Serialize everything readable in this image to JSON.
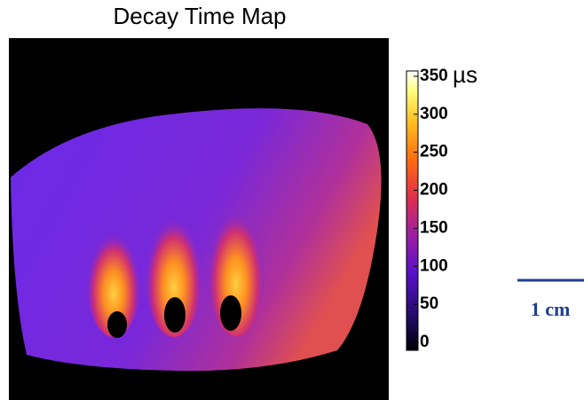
{
  "title": "Decay Time Map",
  "colorbar": {
    "lim": [
      0,
      350
    ],
    "ticks": [
      0,
      50,
      100,
      150,
      200,
      250,
      300,
      350
    ],
    "unit": "µs"
  },
  "scale_bar": {
    "label": "1 cm"
  }
}
